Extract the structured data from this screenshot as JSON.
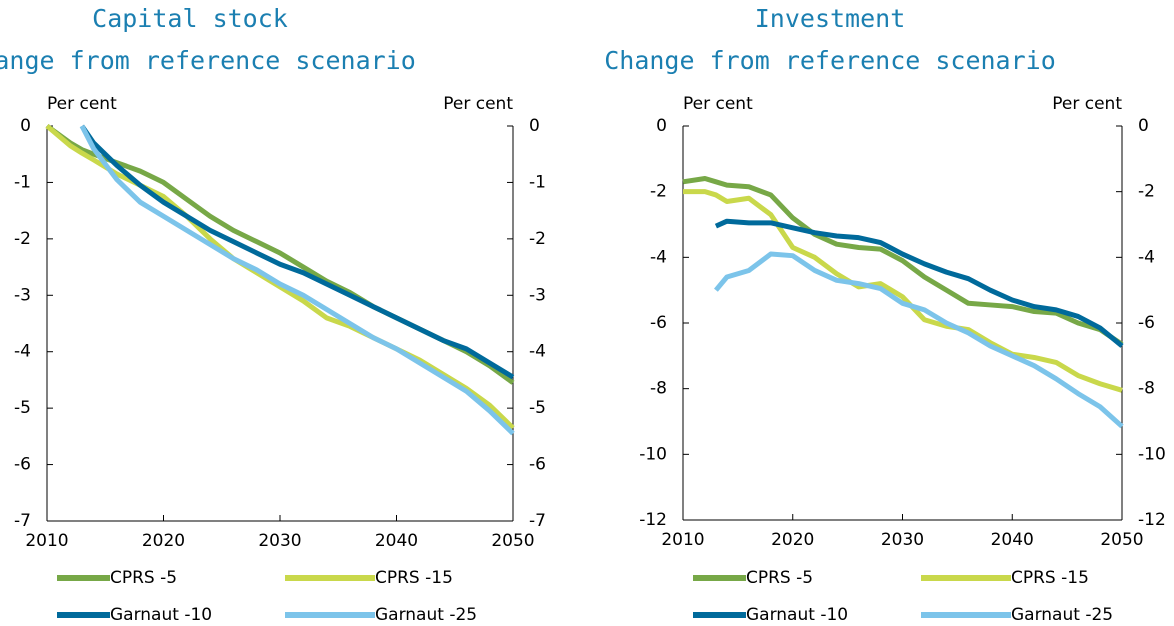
{
  "chart_data": [
    {
      "type": "line",
      "title": "Capital stock",
      "subtitle": "Change from reference scenario",
      "y_label": "Per cent",
      "y2_label": "Per cent",
      "x": [
        2010,
        2012,
        2013,
        2014,
        2016,
        2018,
        2020,
        2022,
        2024,
        2026,
        2028,
        2030,
        2032,
        2034,
        2036,
        2038,
        2040,
        2042,
        2044,
        2046,
        2048,
        2050
      ],
      "xlim": [
        2010,
        2050
      ],
      "xticks": [
        2010,
        2020,
        2030,
        2040,
        2050
      ],
      "ylim": [
        -7,
        0
      ],
      "yticks": [
        0,
        -1,
        -2,
        -3,
        -4,
        -5,
        -6,
        -7
      ],
      "y2lim": [
        -7,
        0
      ],
      "y2ticks": [
        0,
        -1,
        -2,
        -3,
        -4,
        -5,
        -6,
        -7
      ],
      "series": [
        {
          "name": "CPRS -5",
          "color": "#77a847",
          "values": [
            0,
            -0.3,
            -0.42,
            -0.5,
            -0.65,
            -0.8,
            -1.0,
            -1.3,
            -1.6,
            -1.85,
            -2.05,
            -2.25,
            -2.5,
            -2.75,
            -2.95,
            -3.2,
            -3.4,
            -3.6,
            -3.8,
            -4.0,
            -4.25,
            -4.55
          ]
        },
        {
          "name": "CPRS -15",
          "color": "#c9d84b",
          "values": [
            0,
            -0.35,
            -0.48,
            -0.6,
            -0.85,
            -1.05,
            -1.25,
            -1.6,
            -2.0,
            -2.35,
            -2.6,
            -2.85,
            -3.1,
            -3.4,
            -3.55,
            -3.75,
            -3.95,
            -4.15,
            -4.4,
            -4.65,
            -4.95,
            -5.35
          ]
        },
        {
          "name": "Garnaut -10",
          "color": "#006a9b",
          "values": [
            null,
            null,
            0,
            -0.3,
            -0.7,
            -1.05,
            -1.35,
            -1.6,
            -1.85,
            -2.05,
            -2.25,
            -2.45,
            -2.6,
            -2.8,
            -3.0,
            -3.2,
            -3.4,
            -3.6,
            -3.8,
            -3.95,
            -4.2,
            -4.45
          ]
        },
        {
          "name": "Garnaut -25",
          "color": "#7cc4ea",
          "values": [
            null,
            null,
            0,
            -0.4,
            -0.95,
            -1.35,
            -1.6,
            -1.85,
            -2.1,
            -2.35,
            -2.55,
            -2.8,
            -3.0,
            -3.25,
            -3.5,
            -3.75,
            -3.95,
            -4.2,
            -4.45,
            -4.7,
            -5.05,
            -5.45
          ]
        }
      ]
    },
    {
      "type": "line",
      "title": "Investment",
      "subtitle": "Change from reference scenario",
      "y_label": "Per cent",
      "y2_label": "Per cent",
      "x": [
        2010,
        2012,
        2013,
        2014,
        2016,
        2018,
        2020,
        2022,
        2024,
        2026,
        2028,
        2030,
        2032,
        2034,
        2036,
        2038,
        2040,
        2042,
        2044,
        2046,
        2048,
        2050
      ],
      "xlim": [
        2010,
        2050
      ],
      "xticks": [
        2010,
        2020,
        2030,
        2040,
        2050
      ],
      "ylim": [
        -12,
        0
      ],
      "yticks": [
        0,
        -2,
        -4,
        -6,
        -8,
        -10,
        -12
      ],
      "y2lim": [
        -12,
        0
      ],
      "y2ticks": [
        0,
        -2,
        -4,
        -6,
        -8,
        -10,
        -12
      ],
      "series": [
        {
          "name": "CPRS -5",
          "color": "#77a847",
          "values": [
            -1.7,
            -1.6,
            -1.7,
            -1.8,
            -1.85,
            -2.1,
            -2.8,
            -3.3,
            -3.6,
            -3.7,
            -3.75,
            -4.1,
            -4.6,
            -5.0,
            -5.4,
            -5.45,
            -5.5,
            -5.65,
            -5.7,
            -6.0,
            -6.2,
            -6.65
          ]
        },
        {
          "name": "CPRS -15",
          "color": "#c9d84b",
          "values": [
            -2.0,
            -2.0,
            -2.1,
            -2.3,
            -2.2,
            -2.7,
            -3.7,
            -4.0,
            -4.5,
            -4.9,
            -4.8,
            -5.2,
            -5.9,
            -6.1,
            -6.2,
            -6.6,
            -6.95,
            -7.05,
            -7.2,
            -7.6,
            -7.85,
            -8.05
          ]
        },
        {
          "name": "Garnaut -10",
          "color": "#006a9b",
          "values": [
            null,
            null,
            -3.05,
            -2.9,
            -2.95,
            -2.95,
            -3.1,
            -3.25,
            -3.35,
            -3.4,
            -3.55,
            -3.9,
            -4.2,
            -4.45,
            -4.65,
            -5.0,
            -5.3,
            -5.5,
            -5.6,
            -5.8,
            -6.15,
            -6.7
          ]
        },
        {
          "name": "Garnaut -25",
          "color": "#7cc4ea",
          "values": [
            null,
            null,
            -5.0,
            -4.6,
            -4.4,
            -3.9,
            -3.95,
            -4.4,
            -4.7,
            -4.8,
            -4.95,
            -5.4,
            -5.6,
            -6.0,
            -6.3,
            -6.7,
            -7.0,
            -7.3,
            -7.7,
            -8.15,
            -8.55,
            -9.15
          ]
        }
      ]
    }
  ]
}
